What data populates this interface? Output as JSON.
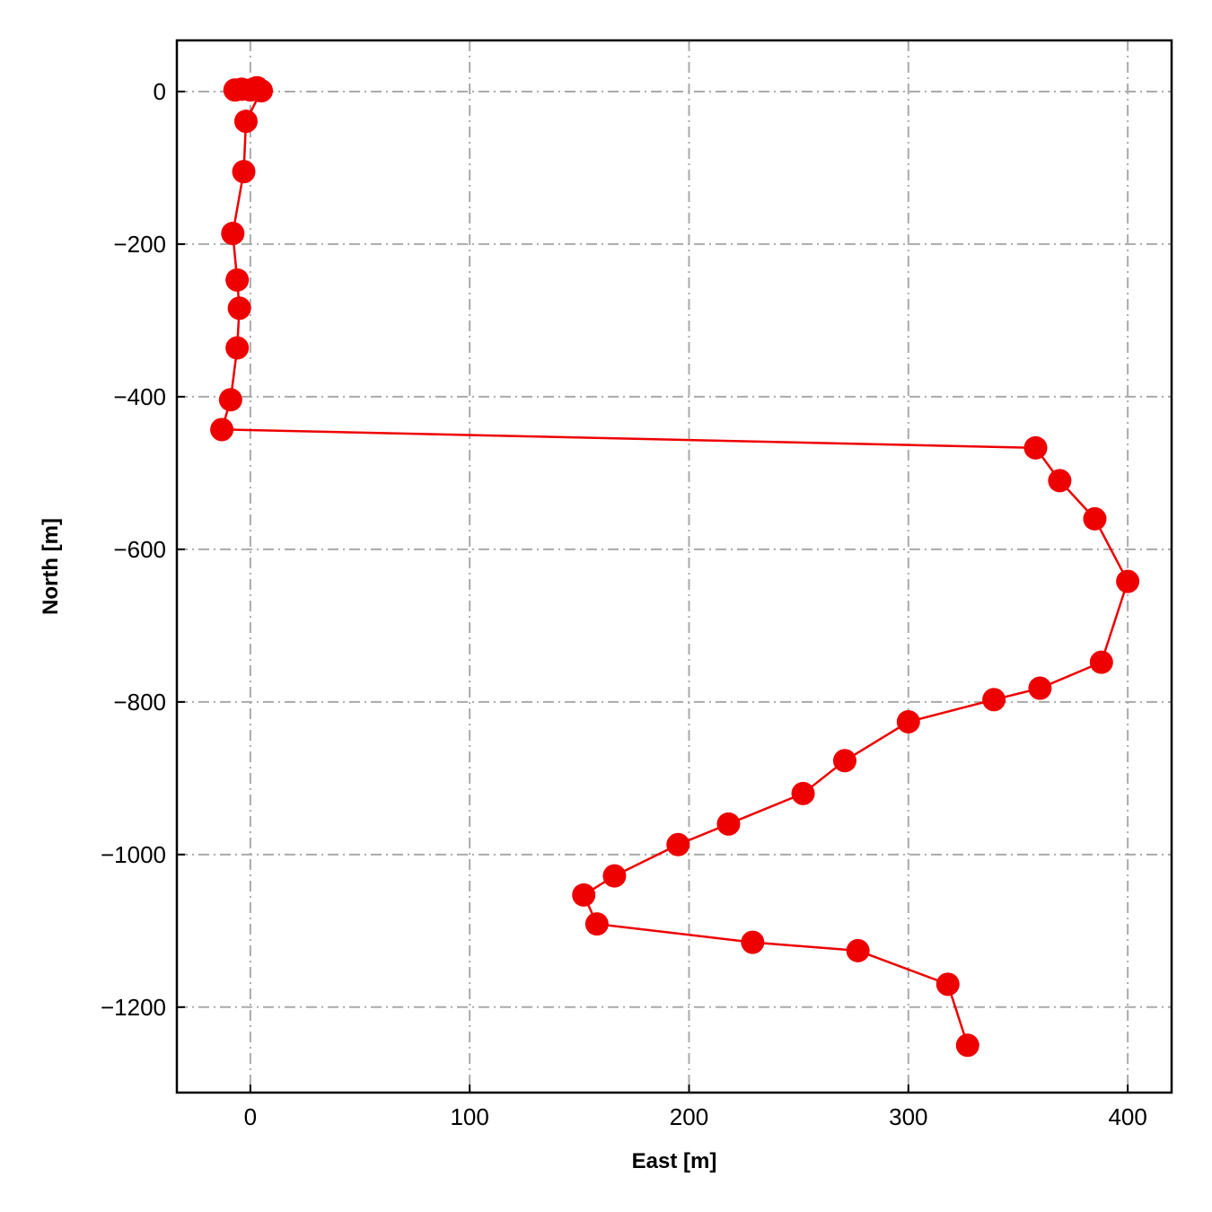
{
  "chart_data": {
    "type": "line",
    "title": "",
    "xlabel": "East [m]",
    "ylabel": "North [m]",
    "xlim": [
      -33.5,
      420
    ],
    "ylim": [
      -1312,
      67
    ],
    "xticks": [
      0,
      100,
      200,
      300,
      400
    ],
    "yticks": [
      0,
      -200,
      -400,
      -600,
      -800,
      -1000,
      -1200
    ],
    "xtick_labels": [
      "0",
      "100",
      "200",
      "300",
      "400"
    ],
    "ytick_labels": [
      "0",
      "−200",
      "−400",
      "−600",
      "−800",
      "−1000",
      "−1200"
    ],
    "grid": true,
    "marker": "circle",
    "color": "#ee0000",
    "grid_color": "#aaaaaa",
    "series": [
      {
        "x": [
          -7,
          -4,
          0,
          3,
          5,
          -2,
          -3,
          -8,
          -6,
          -5,
          -6,
          -9,
          -13,
          358,
          369,
          385,
          400,
          388,
          360,
          339,
          300,
          271,
          252,
          218,
          195,
          166,
          152,
          158,
          229,
          277,
          318,
          327
        ],
        "y": [
          2,
          3,
          2,
          5,
          1,
          -39,
          -105,
          -186,
          -247,
          -284,
          -336,
          -404,
          -443,
          -467,
          -510,
          -560,
          -642,
          -748,
          -782,
          -797,
          -826,
          -877,
          -920,
          -960,
          -987,
          -1028,
          -1053,
          -1091,
          -1115,
          -1126,
          -1170,
          -1250
        ]
      }
    ]
  }
}
